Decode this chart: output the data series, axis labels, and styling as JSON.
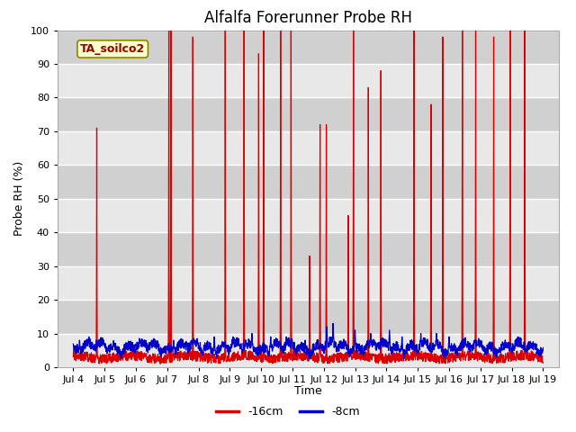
{
  "title": "Alfalfa Forerunner Probe RH",
  "ylabel": "Probe RH (%)",
  "xlabel": "Time",
  "ylim": [
    0,
    100
  ],
  "xlim": [
    3.5,
    19.5
  ],
  "xticks": [
    4,
    5,
    6,
    7,
    8,
    9,
    10,
    11,
    12,
    13,
    14,
    15,
    16,
    17,
    18,
    19
  ],
  "xticklabels": [
    "Jul 4",
    "Jul 5",
    "Jul 6",
    "Jul 7",
    "Jul 8",
    "Jul 9",
    "Jul 10",
    "Jul 11",
    "Jul 12",
    "Jul 13",
    "Jul 14",
    "Jul 15",
    "Jul 16",
    "Jul 17",
    "Jul 18",
    "Jul 19"
  ],
  "annotation_text": "TA_soilco2",
  "bg_color": "#e8e8e8",
  "band_color": "#d0d0d0",
  "grid_color": "white",
  "red_color": "#dd0000",
  "blue_color": "#0000cc",
  "legend_red": "-16cm",
  "legend_blue": "-8cm",
  "spike_times_red": [
    [
      4.75,
      71
    ],
    [
      7.05,
      100
    ],
    [
      7.12,
      100
    ],
    [
      7.82,
      98
    ],
    [
      8.85,
      100
    ],
    [
      9.45,
      100
    ],
    [
      9.92,
      93
    ],
    [
      10.08,
      100
    ],
    [
      10.62,
      100
    ],
    [
      10.95,
      100
    ],
    [
      11.55,
      33
    ],
    [
      11.88,
      72
    ],
    [
      12.08,
      72
    ],
    [
      12.78,
      45
    ],
    [
      12.95,
      100
    ],
    [
      13.42,
      83
    ],
    [
      13.82,
      88
    ],
    [
      14.88,
      100
    ],
    [
      15.42,
      78
    ],
    [
      15.8,
      98
    ],
    [
      16.42,
      100
    ],
    [
      16.85,
      100
    ],
    [
      17.42,
      98
    ],
    [
      17.95,
      100
    ],
    [
      18.42,
      100
    ]
  ]
}
